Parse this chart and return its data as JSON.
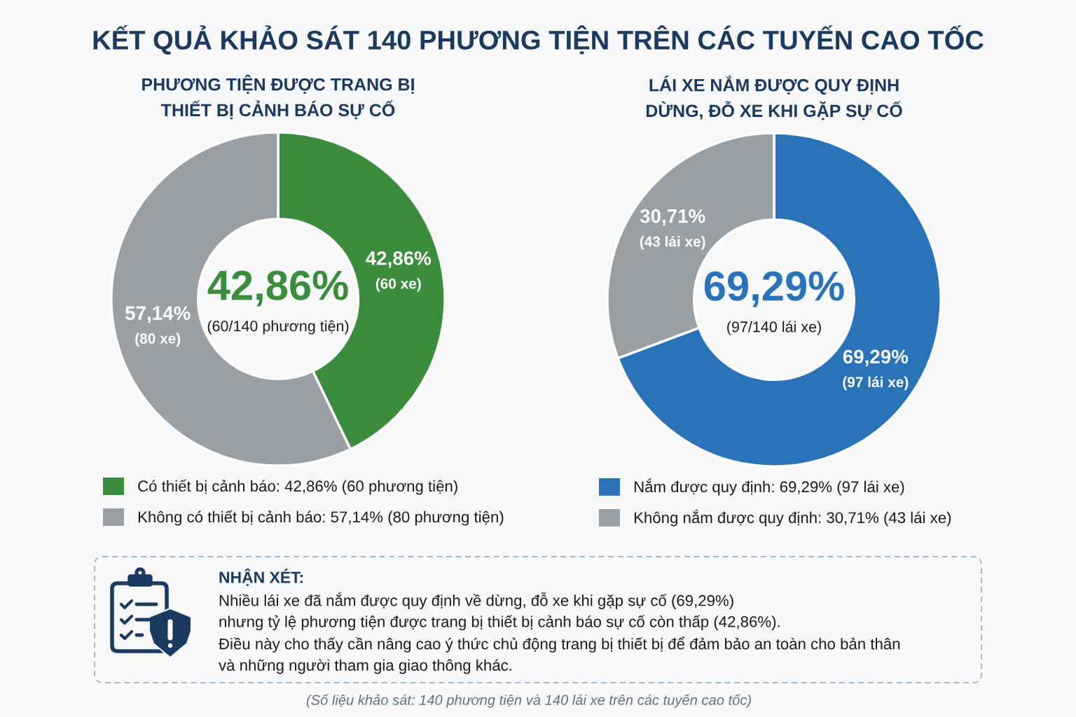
{
  "chart_data": [
    {
      "type": "other",
      "title": "KẾT QUẢ KHẢO SÁT 140 PHƯƠNG TIỆN TRÊN CÁC TUYẾN CAO TỐC"
    },
    {
      "type": "donut",
      "title": "PHƯƠNG TIỆN ĐƯỢC TRANG BỊ\nTHIẾT BỊ CẢNH BÁO SỰ CỐ",
      "categories": [
        "Có thiết bị cảnh báo: 42,86% (60 phương tiện)",
        "Không có thiết bị cảnh báo: 57,14% (80 phương tiện)"
      ],
      "values": [
        42.86,
        57.14
      ],
      "colors": [
        "#3b8c3d",
        "#9a9fa3"
      ],
      "value_labels": [
        "42,86%\n(60 xe)",
        "57,14%\n(80 xe)"
      ],
      "annotations": [
        "42,86%",
        "(60/140 phương tiện)"
      ],
      "legend": "bottom"
    },
    {
      "type": "donut",
      "title": "LÁI XE NẮM ĐƯỢC QUY ĐỊNH\nDỪNG, ĐỖ XE KHI GẶP SỰ CỐ",
      "categories": [
        "Nắm được quy định: 69,29% (97 lái xe)",
        "Không nắm được quy định: 30,71% (43 lái xe)"
      ],
      "values": [
        69.29,
        30.71
      ],
      "colors": [
        "#2a73b8",
        "#9a9fa3"
      ],
      "value_labels": [
        "69,29%\n(97 lái xe)",
        "30,71%\n(43 lái xe)"
      ],
      "annotations": [
        "69,29%",
        "(97/140 lái xe)"
      ],
      "legend": "bottom"
    },
    {
      "type": "other",
      "title": "NHẬN XÉT:",
      "annotations": [
        "Nhiều lái xe đã nắm được quy định về dừng, đỗ xe khi gặp sự cố (69,29%)",
        "nhưng tỷ lệ phương tiện được trang bị thiết bị cảnh báo sự cố còn thấp (42,86%).",
        "Điều này cho thấy cần nâng cao ý thức chủ động trang bị thiết bị để đảm bảo an toàn cho bản thân",
        "và những người tham gia giao thông khác.",
        "(Số liệu khảo sát: 140 phương tiện và 140 lái xe trên các tuyến cao tốc)"
      ]
    }
  ]
}
